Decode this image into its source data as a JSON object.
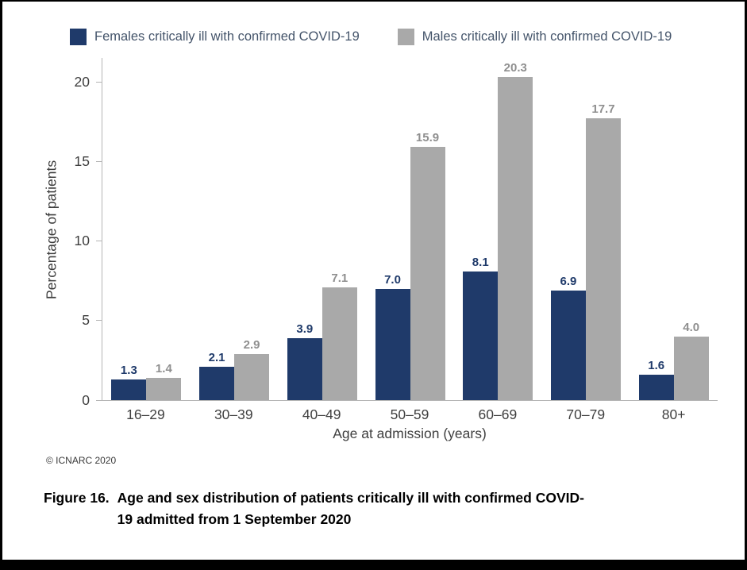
{
  "page": {
    "copyright": "© ICNARC 2020",
    "caption_label": "Figure 16.",
    "caption_line1": "Age and sex distribution of patients critically ill with confirmed COVID-",
    "caption_line2": "19 admitted from 1 September 2020"
  },
  "chart_data": {
    "type": "bar",
    "categories": [
      "16–29",
      "30–39",
      "40–49",
      "50–59",
      "60–69",
      "70–79",
      "80+"
    ],
    "series": [
      {
        "name": "Females critically ill with confirmed COVID-19",
        "color": "#1f3a6a",
        "label_color": "#1f3a6a",
        "values": [
          1.3,
          2.1,
          3.9,
          7.0,
          8.1,
          6.9,
          1.6
        ]
      },
      {
        "name": "Males critically ill with confirmed COVID-19",
        "color": "#a9a9a9",
        "label_color": "#8f8f8f",
        "values": [
          1.4,
          2.9,
          7.1,
          15.9,
          20.3,
          17.7,
          4.0
        ]
      }
    ],
    "title": "",
    "xlabel": "Age at admission (years)",
    "ylabel": "Percentage of patients",
    "yticks": [
      0,
      5,
      10,
      15,
      20
    ],
    "ylim": [
      0,
      21.5
    ],
    "grid": false,
    "legend_position": "top"
  }
}
